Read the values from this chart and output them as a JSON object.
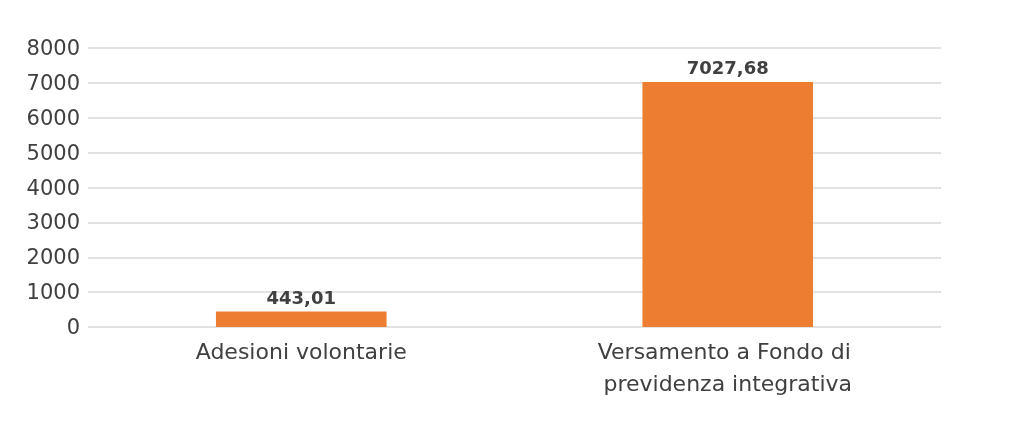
{
  "chart_data": {
    "type": "bar",
    "categories": [
      "Adesioni volontarie",
      "Versamento a Fondo di previdenza integrativa"
    ],
    "values": [
      443.01,
      7027.68
    ],
    "value_labels": [
      "443,01",
      "7027,68"
    ],
    "color": "#ed7d31",
    "ylim": [
      0,
      8000
    ],
    "yticks": [
      0,
      1000,
      2000,
      3000,
      4000,
      5000,
      6000,
      7000,
      8000
    ],
    "grid": true
  }
}
